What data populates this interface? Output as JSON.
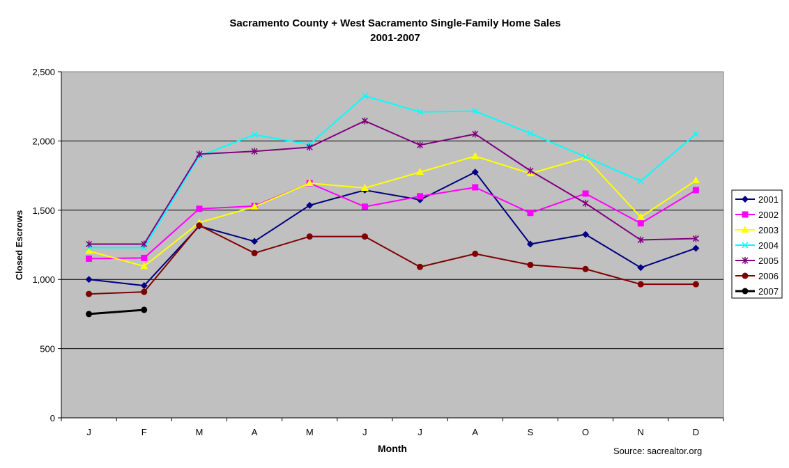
{
  "chart_data": {
    "type": "line",
    "title": "Sacramento County + West Sacramento Single-Family Home Sales",
    "subtitle": "2001-2007",
    "xlabel": "Month",
    "ylabel": "Closed Escrows",
    "source": "Source:  sacrealtor.org",
    "categories": [
      "J",
      "F",
      "M",
      "A",
      "M",
      "J",
      "J",
      "A",
      "S",
      "O",
      "N",
      "D"
    ],
    "ylim": [
      0,
      2500
    ],
    "yticks": [
      0,
      500,
      1000,
      1500,
      2000,
      2500
    ],
    "ytick_labels": [
      "0",
      "500",
      "1,000",
      "1,500",
      "2,000",
      "2,500"
    ],
    "grid": true,
    "legend_position": "right",
    "series": [
      {
        "name": "2001",
        "color": "#000080",
        "marker": "diamond",
        "values": [
          1000,
          955,
          1385,
          1275,
          1535,
          1645,
          1575,
          1775,
          1255,
          1325,
          1085,
          1225
        ]
      },
      {
        "name": "2002",
        "color": "#FF00FF",
        "marker": "square",
        "values": [
          1150,
          1155,
          1510,
          1530,
          1695,
          1525,
          1600,
          1665,
          1480,
          1620,
          1405,
          1645
        ]
      },
      {
        "name": "2003",
        "color": "#FFFF00",
        "marker": "triangle",
        "values": [
          1205,
          1095,
          1410,
          1525,
          1695,
          1660,
          1775,
          1890,
          1765,
          1880,
          1450,
          1715
        ]
      },
      {
        "name": "2004",
        "color": "#00FFFF",
        "marker": "x",
        "values": [
          1230,
          1230,
          1890,
          2045,
          1975,
          2325,
          2210,
          2215,
          2055,
          1885,
          1710,
          2050
        ]
      },
      {
        "name": "2005",
        "color": "#800080",
        "marker": "star",
        "values": [
          1255,
          1255,
          1905,
          1925,
          1955,
          2145,
          1970,
          2050,
          1785,
          1550,
          1285,
          1295
        ]
      },
      {
        "name": "2006",
        "color": "#800000",
        "marker": "circle",
        "values": [
          895,
          910,
          1390,
          1190,
          1310,
          1310,
          1090,
          1185,
          1105,
          1075,
          965,
          965
        ]
      },
      {
        "name": "2007",
        "color": "#000000",
        "marker": "circle",
        "values": [
          750,
          780,
          null,
          null,
          null,
          null,
          null,
          null,
          null,
          null,
          null,
          null
        ]
      }
    ]
  }
}
